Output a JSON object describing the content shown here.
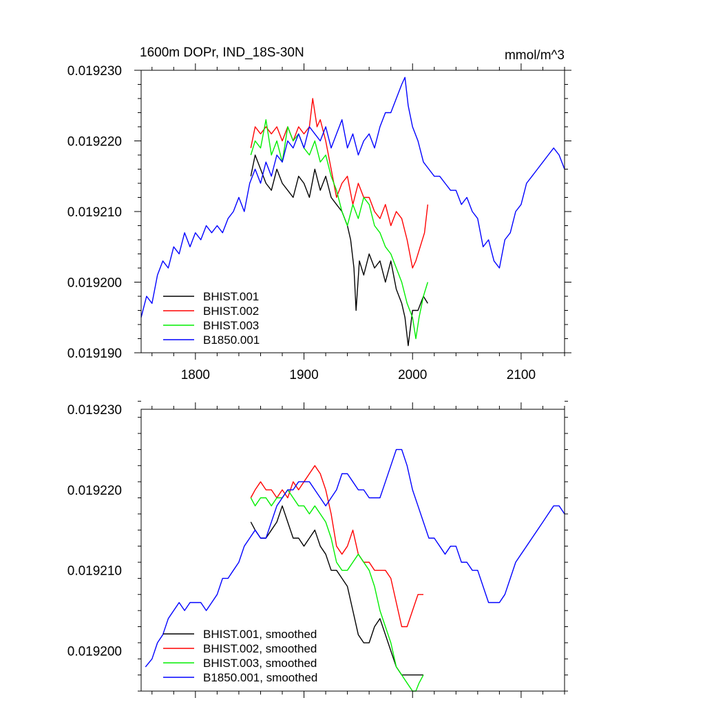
{
  "chart_data": [
    {
      "type": "line",
      "title": "1600m DOPr, IND_18S-30N",
      "units_label": "mmol/m^3",
      "xlim": [
        1750,
        2140
      ],
      "ylim": [
        0.01919,
        0.01923
      ],
      "x_ticks": [
        1800,
        1900,
        2000,
        2100
      ],
      "x_tick_labels": [
        "1800",
        "1900",
        "2000",
        "2100"
      ],
      "y_ticks": [
        0.01919,
        0.0192,
        0.01921,
        0.01922,
        0.01923
      ],
      "y_tick_labels": [
        "0.019190",
        "0.019200",
        "0.019210",
        "0.019220",
        "0.019230"
      ],
      "legend_position": "bottom-left",
      "series": [
        {
          "name": "BHIST.001",
          "color": "#000000",
          "x": [
            1851,
            1855,
            1860,
            1865,
            1870,
            1875,
            1880,
            1885,
            1890,
            1895,
            1900,
            1905,
            1910,
            1915,
            1920,
            1925,
            1930,
            1935,
            1940,
            1943,
            1946,
            1948,
            1951,
            1955,
            1960,
            1965,
            1970,
            1975,
            1980,
            1985,
            1990,
            1993,
            1996,
            2000,
            2005,
            2010,
            2014
          ],
          "values": [
            0.019215,
            0.019218,
            0.019216,
            0.019214,
            0.019213,
            0.019216,
            0.019214,
            0.019213,
            0.019212,
            0.019215,
            0.019214,
            0.019212,
            0.019216,
            0.019213,
            0.019215,
            0.019212,
            0.019211,
            0.01921,
            0.019208,
            0.019206,
            0.019202,
            0.019196,
            0.019203,
            0.019201,
            0.019204,
            0.019202,
            0.019203,
            0.0192,
            0.019203,
            0.019199,
            0.019197,
            0.019195,
            0.019191,
            0.019196,
            0.019196,
            0.019198,
            0.019197
          ]
        },
        {
          "name": "BHIST.002",
          "color": "#ff0000",
          "x": [
            1851,
            1855,
            1860,
            1865,
            1870,
            1875,
            1880,
            1885,
            1890,
            1895,
            1900,
            1905,
            1908,
            1912,
            1915,
            1920,
            1925,
            1930,
            1935,
            1940,
            1945,
            1950,
            1955,
            1960,
            1965,
            1970,
            1975,
            1980,
            1985,
            1990,
            1995,
            2000,
            2003,
            2007,
            2011,
            2014
          ],
          "values": [
            0.019219,
            0.019222,
            0.019221,
            0.019222,
            0.019221,
            0.019222,
            0.01922,
            0.019222,
            0.01922,
            0.019222,
            0.019221,
            0.019222,
            0.019226,
            0.019222,
            0.019223,
            0.01922,
            0.019216,
            0.019212,
            0.019214,
            0.019215,
            0.019211,
            0.019214,
            0.019212,
            0.019212,
            0.01921,
            0.019209,
            0.019211,
            0.019208,
            0.01921,
            0.019209,
            0.019206,
            0.019202,
            0.019203,
            0.019205,
            0.019207,
            0.019211
          ]
        },
        {
          "name": "BHIST.003",
          "color": "#00ee00",
          "x": [
            1851,
            1855,
            1860,
            1865,
            1870,
            1875,
            1880,
            1885,
            1890,
            1895,
            1900,
            1905,
            1910,
            1915,
            1920,
            1925,
            1930,
            1935,
            1940,
            1945,
            1950,
            1955,
            1960,
            1965,
            1970,
            1975,
            1980,
            1985,
            1990,
            1995,
            2000,
            2003,
            2006,
            2010,
            2014
          ],
          "values": [
            0.019218,
            0.01922,
            0.019219,
            0.019223,
            0.019218,
            0.01922,
            0.019217,
            0.019222,
            0.01922,
            0.019221,
            0.019219,
            0.019218,
            0.01922,
            0.019217,
            0.019218,
            0.019215,
            0.019213,
            0.01921,
            0.019208,
            0.019211,
            0.019209,
            0.019212,
            0.019211,
            0.019208,
            0.019207,
            0.019205,
            0.019204,
            0.019202,
            0.0192,
            0.019197,
            0.019195,
            0.019192,
            0.019195,
            0.019198,
            0.0192
          ]
        },
        {
          "name": "B1850.001",
          "color": "#0000ff",
          "x": [
            1750,
            1755,
            1760,
            1765,
            1770,
            1775,
            1780,
            1785,
            1790,
            1795,
            1800,
            1805,
            1810,
            1815,
            1820,
            1825,
            1830,
            1835,
            1840,
            1845,
            1850,
            1855,
            1860,
            1865,
            1870,
            1875,
            1880,
            1885,
            1890,
            1895,
            1900,
            1905,
            1910,
            1915,
            1920,
            1925,
            1930,
            1935,
            1940,
            1945,
            1950,
            1955,
            1960,
            1965,
            1970,
            1975,
            1980,
            1985,
            1990,
            1993,
            1996,
            2000,
            2005,
            2010,
            2015,
            2020,
            2025,
            2030,
            2035,
            2040,
            2045,
            2050,
            2055,
            2060,
            2065,
            2070,
            2075,
            2080,
            2085,
            2090,
            2095,
            2100,
            2105,
            2110,
            2115,
            2120,
            2125,
            2130,
            2135,
            2140
          ],
          "values": [
            0.019195,
            0.019198,
            0.019197,
            0.019201,
            0.019203,
            0.019202,
            0.019205,
            0.019204,
            0.019207,
            0.019205,
            0.019207,
            0.019206,
            0.019208,
            0.019207,
            0.019208,
            0.019207,
            0.019209,
            0.01921,
            0.019212,
            0.01921,
            0.019214,
            0.019216,
            0.019214,
            0.019217,
            0.019215,
            0.019218,
            0.019217,
            0.01922,
            0.019219,
            0.019221,
            0.019219,
            0.019222,
            0.019221,
            0.01922,
            0.019222,
            0.019219,
            0.019221,
            0.019223,
            0.019219,
            0.019221,
            0.019218,
            0.01922,
            0.019221,
            0.019219,
            0.019222,
            0.019224,
            0.019224,
            0.019226,
            0.019228,
            0.019229,
            0.019225,
            0.019222,
            0.01922,
            0.019217,
            0.019216,
            0.019215,
            0.019215,
            0.019214,
            0.019213,
            0.019213,
            0.019211,
            0.019212,
            0.01921,
            0.019209,
            0.019205,
            0.019206,
            0.019203,
            0.019202,
            0.019206,
            0.019207,
            0.01921,
            0.019211,
            0.019214,
            0.019215,
            0.019216,
            0.019217,
            0.019218,
            0.019219,
            0.019218,
            0.019216
          ]
        }
      ]
    },
    {
      "type": "line",
      "xlim": [
        1750,
        2140
      ],
      "ylim": [
        0.019195,
        0.01923
      ],
      "x_ticks": [
        1800,
        1900,
        2000,
        2100
      ],
      "y_ticks": [
        0.0192,
        0.01921,
        0.01922,
        0.01923
      ],
      "y_tick_labels": [
        "0.019200",
        "0.019210",
        "0.019220",
        "0.019230"
      ],
      "legend_position": "bottom-left",
      "series": [
        {
          "name": "BHIST.001, smoothed",
          "color": "#000000",
          "x": [
            1851,
            1855,
            1860,
            1865,
            1870,
            1875,
            1880,
            1885,
            1890,
            1895,
            1900,
            1905,
            1910,
            1915,
            1920,
            1925,
            1930,
            1935,
            1940,
            1945,
            1950,
            1955,
            1960,
            1965,
            1970,
            1975,
            1980,
            1985,
            1990,
            1995,
            2000,
            2005,
            2010
          ],
          "values": [
            0.019216,
            0.019215,
            0.019214,
            0.019214,
            0.019215,
            0.019216,
            0.019218,
            0.019216,
            0.019214,
            0.019214,
            0.019213,
            0.019214,
            0.019215,
            0.019213,
            0.019212,
            0.01921,
            0.01921,
            0.019209,
            0.019208,
            0.019205,
            0.019202,
            0.019201,
            0.019201,
            0.019203,
            0.019204,
            0.019202,
            0.0192,
            0.019198,
            0.019197,
            0.019197,
            0.019197,
            0.019197,
            0.019197
          ]
        },
        {
          "name": "BHIST.002, smoothed",
          "color": "#ff0000",
          "x": [
            1851,
            1855,
            1860,
            1865,
            1870,
            1875,
            1880,
            1885,
            1890,
            1895,
            1900,
            1905,
            1910,
            1915,
            1920,
            1925,
            1930,
            1935,
            1940,
            1945,
            1950,
            1955,
            1960,
            1965,
            1970,
            1975,
            1980,
            1985,
            1990,
            1995,
            2000,
            2005,
            2010
          ],
          "values": [
            0.019219,
            0.01922,
            0.019221,
            0.01922,
            0.01922,
            0.019219,
            0.01922,
            0.019219,
            0.019221,
            0.01922,
            0.019221,
            0.019222,
            0.019223,
            0.019222,
            0.01922,
            0.019217,
            0.019213,
            0.019212,
            0.019213,
            0.019215,
            0.019212,
            0.019211,
            0.019211,
            0.01921,
            0.01921,
            0.01921,
            0.019209,
            0.019206,
            0.019203,
            0.019203,
            0.019205,
            0.019207,
            0.019207
          ]
        },
        {
          "name": "BHIST.003, smoothed",
          "color": "#00ee00",
          "x": [
            1851,
            1855,
            1860,
            1865,
            1870,
            1875,
            1880,
            1885,
            1890,
            1895,
            1900,
            1905,
            1910,
            1915,
            1920,
            1925,
            1930,
            1935,
            1940,
            1945,
            1950,
            1955,
            1960,
            1965,
            1970,
            1975,
            1980,
            1985,
            1990,
            1995,
            2000,
            2003,
            2006,
            2010
          ],
          "values": [
            0.019219,
            0.019218,
            0.019219,
            0.019219,
            0.019218,
            0.019219,
            0.019219,
            0.01922,
            0.019219,
            0.019218,
            0.019218,
            0.019217,
            0.019218,
            0.019217,
            0.019216,
            0.019214,
            0.019211,
            0.01921,
            0.01921,
            0.019211,
            0.019212,
            0.019211,
            0.01921,
            0.019208,
            0.019205,
            0.019203,
            0.019201,
            0.019198,
            0.019197,
            0.019196,
            0.019195,
            0.019195,
            0.019196,
            0.019197
          ]
        },
        {
          "name": "B1850.001, smoothed",
          "color": "#0000ff",
          "x": [
            1754,
            1760,
            1765,
            1770,
            1775,
            1780,
            1785,
            1790,
            1795,
            1800,
            1805,
            1810,
            1815,
            1820,
            1825,
            1830,
            1835,
            1840,
            1845,
            1850,
            1855,
            1860,
            1865,
            1870,
            1875,
            1880,
            1885,
            1890,
            1895,
            1900,
            1905,
            1910,
            1915,
            1920,
            1925,
            1930,
            1935,
            1940,
            1945,
            1950,
            1955,
            1960,
            1965,
            1970,
            1975,
            1980,
            1985,
            1990,
            1995,
            2000,
            2005,
            2010,
            2015,
            2020,
            2025,
            2030,
            2035,
            2040,
            2045,
            2050,
            2055,
            2060,
            2065,
            2070,
            2075,
            2080,
            2085,
            2090,
            2095,
            2100,
            2105,
            2110,
            2115,
            2120,
            2125,
            2130,
            2135,
            2140
          ],
          "values": [
            0.019198,
            0.019199,
            0.019201,
            0.019202,
            0.019204,
            0.019205,
            0.019206,
            0.019205,
            0.019206,
            0.019206,
            0.019206,
            0.019205,
            0.019206,
            0.019207,
            0.019209,
            0.019209,
            0.01921,
            0.019211,
            0.019213,
            0.019214,
            0.019215,
            0.019214,
            0.019214,
            0.019216,
            0.019218,
            0.019219,
            0.01922,
            0.01922,
            0.019221,
            0.019221,
            0.019221,
            0.01922,
            0.019219,
            0.019218,
            0.019219,
            0.01922,
            0.019222,
            0.019222,
            0.019221,
            0.01922,
            0.01922,
            0.019219,
            0.019219,
            0.019219,
            0.019221,
            0.019223,
            0.019225,
            0.019225,
            0.019223,
            0.01922,
            0.019218,
            0.019216,
            0.019214,
            0.019214,
            0.019213,
            0.019212,
            0.019213,
            0.019213,
            0.019211,
            0.019211,
            0.01921,
            0.01921,
            0.019208,
            0.019206,
            0.019206,
            0.019206,
            0.019207,
            0.019209,
            0.019211,
            0.019212,
            0.019213,
            0.019214,
            0.019215,
            0.019216,
            0.019217,
            0.019218,
            0.019218,
            0.019217
          ]
        }
      ]
    }
  ]
}
